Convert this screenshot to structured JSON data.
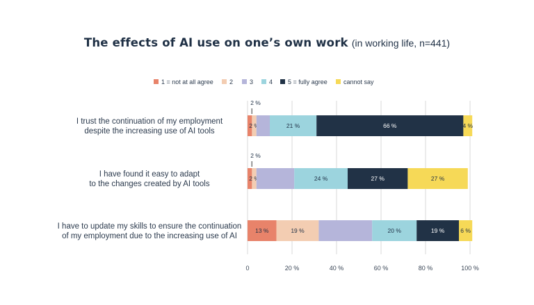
{
  "chart_data": {
    "type": "bar",
    "orientation": "horizontal",
    "stacked": true,
    "title": "The effects of AI use on one’s own work",
    "subtitle": "(in working life, n=441)",
    "xlim": [
      0,
      100
    ],
    "x_ticks": [
      "0",
      "20 %",
      "40 %",
      "60 %",
      "80 %",
      "100 %"
    ],
    "x_tick_values": [
      0,
      20,
      40,
      60,
      80,
      100
    ],
    "legend_position": "top",
    "categories": [
      [
        "I trust the continuation of my employment",
        "despite the increasing use of AI tools"
      ],
      [
        "I have found it easy to adapt",
        "to the changes created by AI tools"
      ],
      [
        "I have to update my skills to ensure the continuation",
        "of my employment due to the increasing use of AI"
      ]
    ],
    "series": [
      {
        "name": "1 = not at all agree",
        "color": "#e8836a",
        "text_color": "#1f3045",
        "values": [
          2,
          2,
          13
        ],
        "labels": [
          "2 %",
          "2 %",
          "13 %"
        ],
        "callout": [
          true,
          true,
          false
        ]
      },
      {
        "name": "2",
        "color": "#f3cdb2",
        "text_color": "#1f3045",
        "values": [
          2,
          2,
          19
        ],
        "labels": [
          "2 %",
          "2 %",
          "19 %"
        ],
        "callout": [
          false,
          false,
          false
        ]
      },
      {
        "name": "3",
        "color": "#b5b5da",
        "text_color": "#1f3045",
        "values": [
          6,
          17,
          24
        ],
        "labels": [
          "",
          "",
          ""
        ],
        "callout": [
          false,
          false,
          false
        ]
      },
      {
        "name": "4",
        "color": "#9cd4de",
        "text_color": "#1f3045",
        "values": [
          21,
          24,
          20
        ],
        "labels": [
          "21 %",
          "24 %",
          "20 %"
        ],
        "callout": [
          false,
          false,
          false
        ]
      },
      {
        "name": "5 = fully agree",
        "color": "#213246",
        "text_color": "#ffffff",
        "values": [
          66,
          27,
          19
        ],
        "labels": [
          "66 %",
          "27 %",
          "19 %"
        ],
        "callout": [
          false,
          false,
          false
        ]
      },
      {
        "name": "cannot say",
        "color": "#f6d957",
        "text_color": "#1f3045",
        "values": [
          4,
          27,
          6
        ],
        "labels": [
          "4 %",
          "27 %",
          "6 %"
        ],
        "callout": [
          false,
          false,
          false
        ]
      }
    ]
  }
}
